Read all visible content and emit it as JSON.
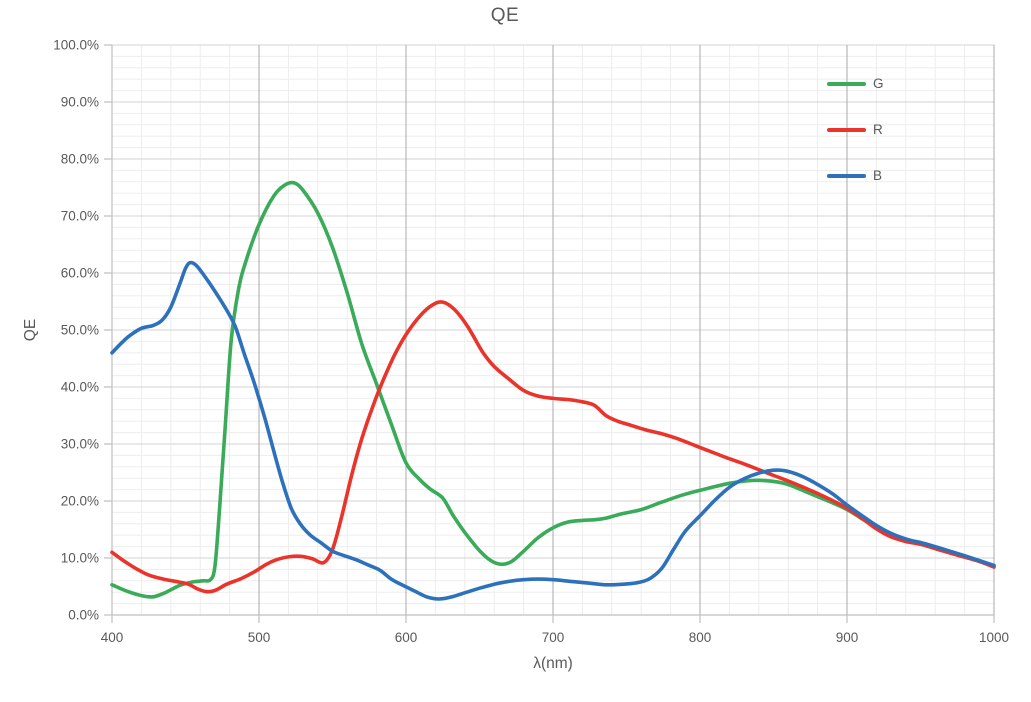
{
  "title": "QE",
  "colors": {
    "green": "#3aab58",
    "red": "#ea342b",
    "blue": "#2d71bd",
    "text": "#595959",
    "axis": "#bfbfbf",
    "grid_major_h": "#d3d3d3",
    "grid_major_v": "#a9a9a9",
    "grid_minor": "#ededed"
  },
  "chart_data": {
    "type": "line",
    "title": "QE",
    "xlabel": "λ(nm)",
    "ylabel": "QE",
    "xlim": [
      400,
      1000
    ],
    "ylim": [
      0,
      100
    ],
    "x_major_step": 100,
    "x_minor_step": 20,
    "y_major_step": 10,
    "y_minor_step": 2,
    "x_tick_labels": [
      "400",
      "500",
      "600",
      "700",
      "800",
      "900",
      "1000"
    ],
    "y_tick_labels": [
      "0.0%",
      "10.0%",
      "20.0%",
      "30.0%",
      "40.0%",
      "50.0%",
      "60.0%",
      "70.0%",
      "80.0%",
      "90.0%",
      "100.0%"
    ],
    "grid": true,
    "legend_position": "top-right-inside",
    "y_units": "percent QE",
    "series": [
      {
        "name": "G",
        "color_key": "green",
        "points": [
          [
            400,
            5.3
          ],
          [
            410,
            4.2
          ],
          [
            420,
            3.4
          ],
          [
            428,
            3.2
          ],
          [
            436,
            3.9
          ],
          [
            446,
            5.2
          ],
          [
            455,
            5.8
          ],
          [
            462,
            6.0
          ],
          [
            467,
            6.2
          ],
          [
            470,
            8.5
          ],
          [
            473,
            18.0
          ],
          [
            477,
            33.0
          ],
          [
            481,
            48.0
          ],
          [
            486,
            57.0
          ],
          [
            491,
            62.0
          ],
          [
            500,
            68.5
          ],
          [
            510,
            73.5
          ],
          [
            518,
            75.5
          ],
          [
            524,
            75.8
          ],
          [
            530,
            74.5
          ],
          [
            540,
            70.5
          ],
          [
            550,
            64.5
          ],
          [
            560,
            56.5
          ],
          [
            570,
            47.5
          ],
          [
            580,
            40.5
          ],
          [
            590,
            33.5
          ],
          [
            600,
            26.7
          ],
          [
            610,
            23.6
          ],
          [
            617,
            22.0
          ],
          [
            625,
            20.5
          ],
          [
            632,
            17.5
          ],
          [
            640,
            14.5
          ],
          [
            650,
            11.3
          ],
          [
            658,
            9.5
          ],
          [
            665,
            8.9
          ],
          [
            672,
            9.4
          ],
          [
            680,
            11.2
          ],
          [
            690,
            13.6
          ],
          [
            700,
            15.3
          ],
          [
            710,
            16.3
          ],
          [
            720,
            16.6
          ],
          [
            728,
            16.7
          ],
          [
            736,
            17.0
          ],
          [
            746,
            17.7
          ],
          [
            760,
            18.5
          ],
          [
            775,
            19.9
          ],
          [
            790,
            21.2
          ],
          [
            805,
            22.2
          ],
          [
            820,
            23.1
          ],
          [
            835,
            23.6
          ],
          [
            848,
            23.5
          ],
          [
            860,
            22.9
          ],
          [
            875,
            21.3
          ],
          [
            890,
            19.7
          ],
          [
            900,
            18.5
          ],
          [
            912,
            16.6
          ],
          [
            922,
            15.1
          ],
          [
            932,
            13.8
          ],
          [
            942,
            12.9
          ],
          [
            952,
            12.4
          ],
          [
            965,
            11.4
          ],
          [
            980,
            10.2
          ],
          [
            1000,
            8.6
          ]
        ]
      },
      {
        "name": "R",
        "color_key": "red",
        "points": [
          [
            400,
            11.0
          ],
          [
            408,
            9.5
          ],
          [
            416,
            8.2
          ],
          [
            425,
            7.0
          ],
          [
            435,
            6.3
          ],
          [
            445,
            5.8
          ],
          [
            452,
            5.4
          ],
          [
            458,
            4.6
          ],
          [
            464,
            4.1
          ],
          [
            470,
            4.3
          ],
          [
            478,
            5.4
          ],
          [
            488,
            6.4
          ],
          [
            497,
            7.6
          ],
          [
            505,
            8.9
          ],
          [
            512,
            9.7
          ],
          [
            520,
            10.2
          ],
          [
            528,
            10.3
          ],
          [
            536,
            9.9
          ],
          [
            544,
            9.2
          ],
          [
            550,
            11.5
          ],
          [
            556,
            17.0
          ],
          [
            563,
            24.5
          ],
          [
            570,
            31.0
          ],
          [
            578,
            37.0
          ],
          [
            585,
            41.5
          ],
          [
            592,
            45.5
          ],
          [
            600,
            49.2
          ],
          [
            610,
            52.6
          ],
          [
            618,
            54.4
          ],
          [
            625,
            54.9
          ],
          [
            633,
            53.6
          ],
          [
            642,
            50.6
          ],
          [
            652,
            46.2
          ],
          [
            660,
            43.6
          ],
          [
            670,
            41.4
          ],
          [
            680,
            39.4
          ],
          [
            690,
            38.4
          ],
          [
            700,
            38.0
          ],
          [
            710,
            37.8
          ],
          [
            720,
            37.4
          ],
          [
            728,
            36.8
          ],
          [
            736,
            35.0
          ],
          [
            744,
            34.0
          ],
          [
            754,
            33.2
          ],
          [
            764,
            32.4
          ],
          [
            774,
            31.8
          ],
          [
            784,
            31.0
          ],
          [
            794,
            30.0
          ],
          [
            806,
            28.8
          ],
          [
            818,
            27.6
          ],
          [
            830,
            26.5
          ],
          [
            842,
            25.3
          ],
          [
            852,
            24.3
          ],
          [
            862,
            23.3
          ],
          [
            874,
            22.0
          ],
          [
            886,
            20.6
          ],
          [
            898,
            19.0
          ],
          [
            910,
            17.0
          ],
          [
            920,
            15.1
          ],
          [
            930,
            13.7
          ],
          [
            940,
            12.9
          ],
          [
            950,
            12.4
          ],
          [
            962,
            11.5
          ],
          [
            975,
            10.5
          ],
          [
            988,
            9.6
          ],
          [
            1000,
            8.4
          ]
        ]
      },
      {
        "name": "B",
        "color_key": "blue",
        "points": [
          [
            400,
            46.0
          ],
          [
            406,
            47.6
          ],
          [
            412,
            49.0
          ],
          [
            420,
            50.3
          ],
          [
            428,
            50.8
          ],
          [
            434,
            51.7
          ],
          [
            440,
            54.0
          ],
          [
            446,
            58.0
          ],
          [
            450,
            60.8
          ],
          [
            453,
            61.8
          ],
          [
            457,
            61.4
          ],
          [
            462,
            59.8
          ],
          [
            470,
            56.8
          ],
          [
            478,
            53.5
          ],
          [
            484,
            50.5
          ],
          [
            490,
            45.8
          ],
          [
            497,
            40.5
          ],
          [
            504,
            34.5
          ],
          [
            510,
            28.8
          ],
          [
            516,
            23.3
          ],
          [
            522,
            18.7
          ],
          [
            528,
            16.0
          ],
          [
            535,
            14.0
          ],
          [
            542,
            12.7
          ],
          [
            550,
            11.2
          ],
          [
            558,
            10.4
          ],
          [
            566,
            9.7
          ],
          [
            574,
            8.8
          ],
          [
            582,
            7.9
          ],
          [
            590,
            6.3
          ],
          [
            598,
            5.2
          ],
          [
            606,
            4.2
          ],
          [
            614,
            3.2
          ],
          [
            622,
            2.8
          ],
          [
            630,
            3.1
          ],
          [
            640,
            3.9
          ],
          [
            650,
            4.7
          ],
          [
            660,
            5.4
          ],
          [
            670,
            5.9
          ],
          [
            680,
            6.2
          ],
          [
            690,
            6.3
          ],
          [
            700,
            6.2
          ],
          [
            712,
            5.9
          ],
          [
            724,
            5.6
          ],
          [
            736,
            5.3
          ],
          [
            748,
            5.4
          ],
          [
            758,
            5.7
          ],
          [
            766,
            6.4
          ],
          [
            774,
            8.2
          ],
          [
            782,
            11.5
          ],
          [
            790,
            14.7
          ],
          [
            800,
            17.4
          ],
          [
            810,
            20.1
          ],
          [
            820,
            22.4
          ],
          [
            830,
            23.9
          ],
          [
            840,
            24.9
          ],
          [
            850,
            25.4
          ],
          [
            858,
            25.3
          ],
          [
            868,
            24.5
          ],
          [
            878,
            23.2
          ],
          [
            890,
            21.3
          ],
          [
            900,
            19.3
          ],
          [
            912,
            17.1
          ],
          [
            922,
            15.4
          ],
          [
            932,
            14.1
          ],
          [
            942,
            13.2
          ],
          [
            952,
            12.6
          ],
          [
            965,
            11.6
          ],
          [
            980,
            10.4
          ],
          [
            1000,
            8.7
          ]
        ]
      }
    ]
  },
  "legend": {
    "items": [
      {
        "label": "G",
        "color_key": "green"
      },
      {
        "label": "R",
        "color_key": "red"
      },
      {
        "label": "B",
        "color_key": "blue"
      }
    ]
  }
}
